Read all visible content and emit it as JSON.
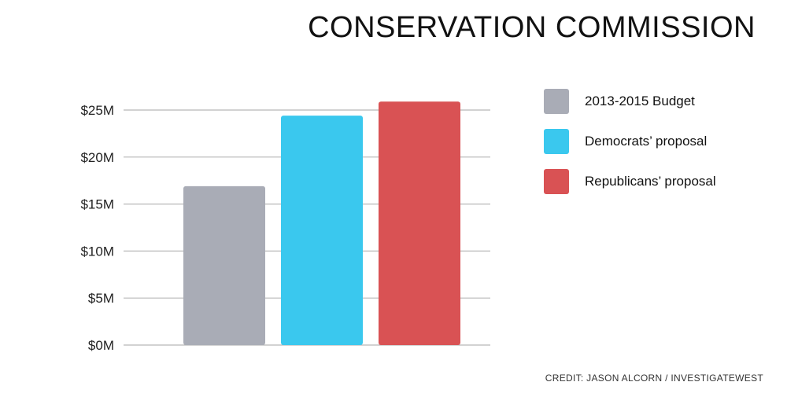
{
  "chart_data": {
    "type": "bar",
    "title": "CONSERVATION COMMISSION",
    "categories": [
      "2013-2015 Budget",
      "Democrats’ proposal",
      "Republicans’ proposal"
    ],
    "values": [
      16.9,
      24.4,
      25.9
    ],
    "colors": [
      "#a9acb6",
      "#3ac8ee",
      "#d95254"
    ],
    "ylim": [
      0,
      25
    ],
    "yticks": [
      0,
      5,
      10,
      15,
      20,
      25
    ],
    "ytick_labels": [
      "$0M",
      "$5M",
      "$10M",
      "$15M",
      "$20M",
      "$25M"
    ],
    "xlabel": "",
    "ylabel": "",
    "grid": true,
    "legend_position": "right",
    "unit": "$M"
  },
  "legend": {
    "items": [
      {
        "label": "2013-2015 Budget",
        "color": "#a9acb6"
      },
      {
        "label": "Democrats’ proposal",
        "color": "#3ac8ee"
      },
      {
        "label": "Republicans’ proposal",
        "color": "#d95254"
      }
    ]
  },
  "credit": "CREDIT: JASON ALCORN / INVESTIGATEWEST"
}
